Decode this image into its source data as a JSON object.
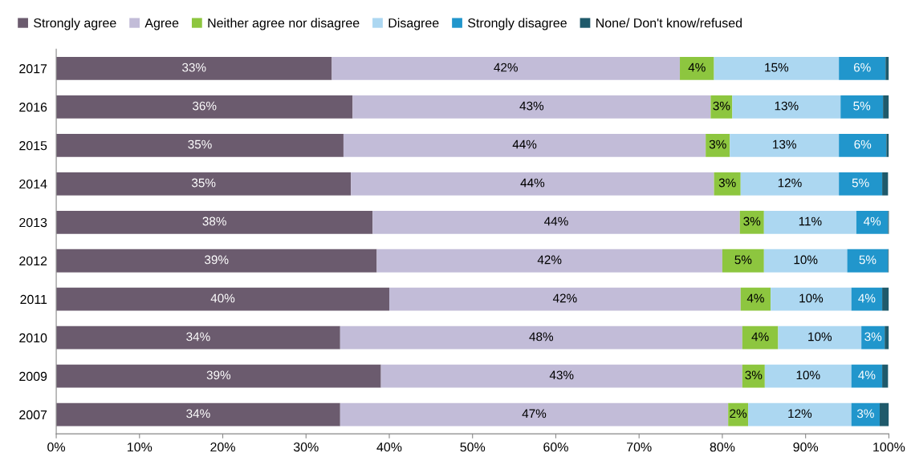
{
  "chart_data": {
    "type": "bar",
    "orientation": "horizontal",
    "stacked": true,
    "legend": "top",
    "grid": false,
    "categories": [
      "2017",
      "2016",
      "2015",
      "2014",
      "2013",
      "2012",
      "2011",
      "2010",
      "2009",
      "2007"
    ],
    "xlim": [
      0,
      100
    ],
    "xticks": [
      {
        "value": 0,
        "label": "0%"
      },
      {
        "value": 10,
        "label": "10%"
      },
      {
        "value": 20,
        "label": "20%"
      },
      {
        "value": 30,
        "label": "30%"
      },
      {
        "value": 40,
        "label": "40%"
      },
      {
        "value": 50,
        "label": "50%"
      },
      {
        "value": 60,
        "label": "60%"
      },
      {
        "value": 70,
        "label": "70%"
      },
      {
        "value": 80,
        "label": "80%"
      },
      {
        "value": 90,
        "label": "90%"
      },
      {
        "value": 100,
        "label": "100%"
      }
    ],
    "series": [
      {
        "name": "Strongly agree",
        "color": "#6b5b6e",
        "values": [
          33.1,
          35.6,
          34.5,
          35.4,
          38.0,
          38.5,
          40.0,
          34.1,
          39.0,
          34.1
        ],
        "value_labels": [
          "33%",
          "36%",
          "35%",
          "35%",
          "38%",
          "39%",
          "40%",
          "34%",
          "39%",
          "34%"
        ]
      },
      {
        "name": "Agree",
        "color": "#c2bcd8",
        "values": [
          41.8,
          43.0,
          43.5,
          43.6,
          44.1,
          41.5,
          42.2,
          48.3,
          43.4,
          46.6
        ],
        "value_labels": [
          "42%",
          "43%",
          "44%",
          "44%",
          "44%",
          "42%",
          "42%",
          "48%",
          "43%",
          "47%"
        ]
      },
      {
        "name": "Neither agree nor disagree",
        "color": "#8dc63f",
        "values": [
          4.1,
          2.6,
          2.9,
          3.2,
          2.9,
          5.0,
          3.6,
          4.3,
          2.7,
          2.4
        ],
        "value_labels": [
          "4%",
          "3%",
          "3%",
          "3%",
          "3%",
          "5%",
          "4%",
          "4%",
          "3%",
          "2%"
        ]
      },
      {
        "name": "Disagree",
        "color": "#acd7f1",
        "values": [
          15.0,
          13.0,
          13.1,
          11.8,
          11.1,
          10.0,
          9.7,
          10.0,
          10.4,
          12.4
        ],
        "value_labels": [
          "15%",
          "13%",
          "13%",
          "12%",
          "11%",
          "10%",
          "10%",
          "10%",
          "10%",
          "12%"
        ]
      },
      {
        "name": "Strongly disagree",
        "color": "#2196cc",
        "values": [
          5.6,
          5.1,
          5.7,
          5.2,
          3.8,
          4.9,
          3.7,
          2.8,
          3.7,
          3.4
        ],
        "value_labels": [
          "6%",
          "5%",
          "6%",
          "5%",
          "4%",
          "5%",
          "4%",
          "3%",
          "4%",
          "3%"
        ]
      },
      {
        "name": "None/ Don't know/refused",
        "color": "#1f5a6b",
        "values": [
          0.4,
          0.7,
          0.3,
          0.7,
          0.2,
          0.1,
          0.8,
          0.5,
          0.7,
          1.1
        ],
        "value_labels": [
          null,
          null,
          null,
          null,
          null,
          null,
          null,
          null,
          null,
          null
        ]
      }
    ]
  }
}
